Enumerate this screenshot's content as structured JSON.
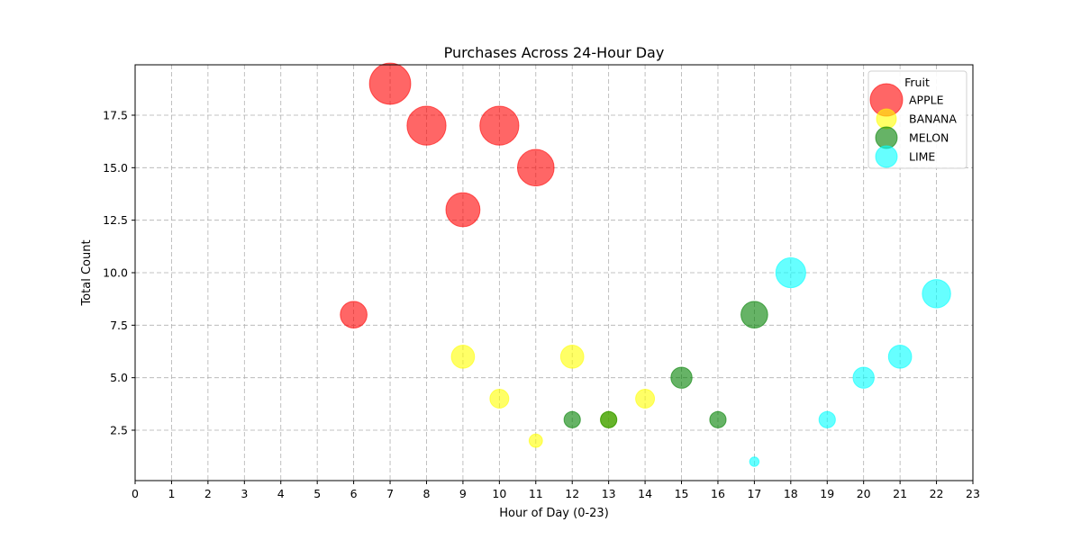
{
  "chart_data": {
    "type": "scatter",
    "title": "Purchases Across 24-Hour Day",
    "xlabel": "Hour of Day (0-23)",
    "ylabel": "Total Count",
    "xlim": [
      0,
      23
    ],
    "ylim": [
      0.1,
      19.9
    ],
    "xticks": [
      0,
      1,
      2,
      3,
      4,
      5,
      6,
      7,
      8,
      9,
      10,
      11,
      12,
      13,
      14,
      15,
      16,
      17,
      18,
      19,
      20,
      21,
      22,
      23
    ],
    "xtick_labels": [
      "0",
      "1",
      "2",
      "3",
      "4",
      "5",
      "6",
      "7",
      "8",
      "9",
      "10",
      "11",
      "12",
      "13",
      "14",
      "15",
      "16",
      "17",
      "18",
      "19",
      "20",
      "21",
      "22",
      "23"
    ],
    "yticks": [
      2.5,
      5.0,
      7.5,
      10.0,
      12.5,
      15.0,
      17.5
    ],
    "ytick_labels": [
      "2.5",
      "5.0",
      "7.5",
      "10.0",
      "12.5",
      "15.0",
      "17.5"
    ],
    "grid": true,
    "bubble_size_encodes": "y",
    "legend": {
      "title": "Fruit",
      "position": "top-right"
    },
    "series": [
      {
        "name": "APPLE",
        "color": "#ff0000",
        "points": [
          [
            6,
            8
          ],
          [
            7,
            19
          ],
          [
            8,
            17
          ],
          [
            9,
            13
          ],
          [
            10,
            17
          ],
          [
            11,
            15
          ]
        ]
      },
      {
        "name": "BANANA",
        "color": "#ffff00",
        "points": [
          [
            9,
            6
          ],
          [
            10,
            4
          ],
          [
            11,
            2
          ],
          [
            12,
            6
          ],
          [
            13,
            3
          ],
          [
            14,
            4
          ]
        ]
      },
      {
        "name": "MELON",
        "color": "#008000",
        "points": [
          [
            12,
            3
          ],
          [
            13,
            3
          ],
          [
            15,
            5
          ],
          [
            16,
            3
          ],
          [
            17,
            8
          ]
        ]
      },
      {
        "name": "LIME",
        "color": "#00ffff",
        "points": [
          [
            17,
            1
          ],
          [
            18,
            10
          ],
          [
            19,
            3
          ],
          [
            20,
            5
          ],
          [
            21,
            6
          ],
          [
            22,
            9
          ]
        ]
      }
    ]
  }
}
